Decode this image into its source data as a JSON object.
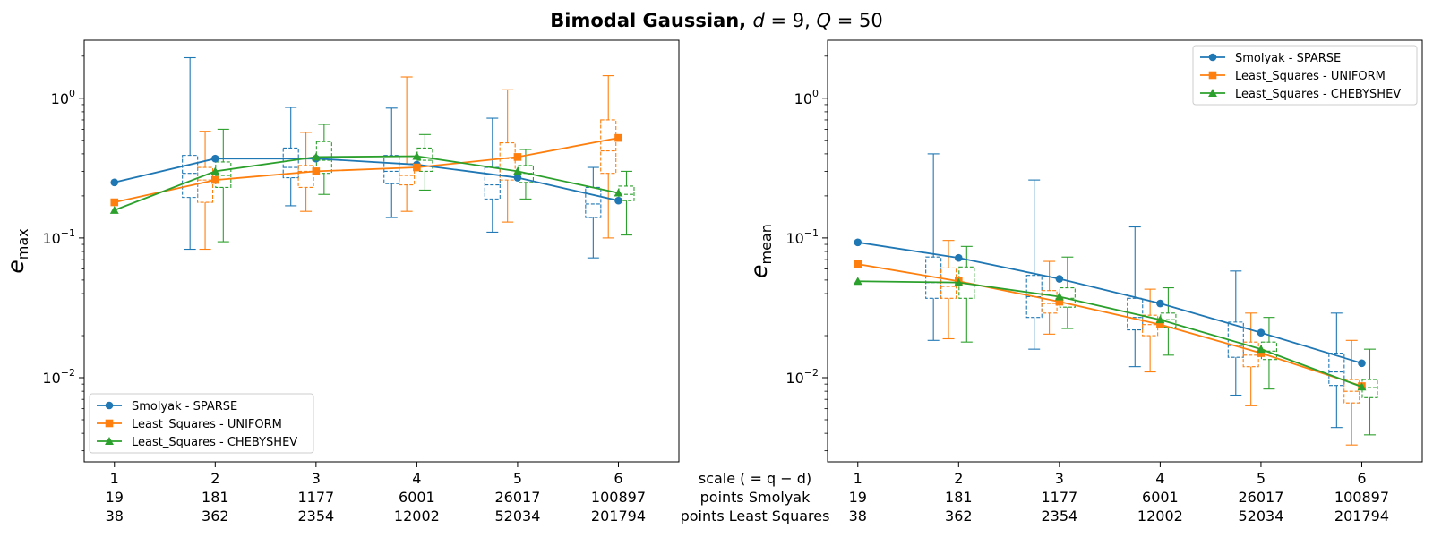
{
  "figure": {
    "title_bold": "Bimodal Gaussian, ",
    "title_math_d": "d",
    "title_math_d_val": " = 9, ",
    "title_math_q": "Q",
    "title_math_q_val": " = 50",
    "scale_label": "scale ( = q − d)",
    "points_smolyak_label": "points Smolyak",
    "points_ls_label": "points Least Squares"
  },
  "chart_data": [
    {
      "type": "line",
      "panel": "left",
      "ylabel_base": "e",
      "ylabel_sub": "max",
      "yscale": "log",
      "ylim": [
        0.0025,
        2.6
      ],
      "xlim": [
        0.7,
        6.6
      ],
      "legend_position": "lower-left",
      "x": [
        1,
        2,
        3,
        4,
        5,
        6
      ],
      "xtick_labels": [
        [
          "1",
          "19",
          "38"
        ],
        [
          "2",
          "181",
          "362"
        ],
        [
          "3",
          "1177",
          "2354"
        ],
        [
          "4",
          "6001",
          "12002"
        ],
        [
          "5",
          "26017",
          "52034"
        ],
        [
          "6",
          "100897",
          "201794"
        ]
      ],
      "ytick_labels": [
        {
          "base": "10",
          "exp": "0",
          "value": 1
        },
        {
          "base": "10",
          "exp": "−1",
          "value": 0.1
        },
        {
          "base": "10",
          "exp": "−2",
          "value": 0.01
        }
      ],
      "series": [
        {
          "name": "Smolyak - SPARSE",
          "color": "#1f77b4",
          "marker": "circle",
          "values": [
            0.25,
            0.37,
            0.37,
            0.335,
            0.27,
            0.185
          ],
          "boxes": [
            null,
            {
              "x": 1.75,
              "wlo": 0.083,
              "q1": 0.195,
              "med": 0.29,
              "q3": 0.39,
              "whi": 1.95
            },
            {
              "x": 2.75,
              "wlo": 0.17,
              "q1": 0.27,
              "med": 0.32,
              "q3": 0.44,
              "whi": 0.86
            },
            {
              "x": 3.75,
              "wlo": 0.14,
              "q1": 0.245,
              "med": 0.3,
              "q3": 0.39,
              "whi": 0.85
            },
            {
              "x": 4.75,
              "wlo": 0.11,
              "q1": 0.19,
              "med": 0.24,
              "q3": 0.32,
              "whi": 0.72
            },
            {
              "x": 5.75,
              "wlo": 0.072,
              "q1": 0.14,
              "med": 0.175,
              "q3": 0.23,
              "whi": 0.32
            }
          ]
        },
        {
          "name": "Least_Squares - UNIFORM",
          "color": "#ff7f0e",
          "marker": "square",
          "values": [
            0.18,
            0.26,
            0.3,
            0.32,
            0.38,
            0.52
          ],
          "boxes": [
            null,
            {
              "x": 1.9,
              "wlo": 0.083,
              "q1": 0.18,
              "med": 0.26,
              "q3": 0.32,
              "whi": 0.58
            },
            {
              "x": 2.9,
              "wlo": 0.155,
              "q1": 0.23,
              "med": 0.3,
              "q3": 0.33,
              "whi": 0.57
            },
            {
              "x": 3.9,
              "wlo": 0.155,
              "q1": 0.24,
              "med": 0.28,
              "q3": 0.34,
              "whi": 1.42
            },
            {
              "x": 4.9,
              "wlo": 0.13,
              "q1": 0.26,
              "med": 0.37,
              "q3": 0.48,
              "whi": 1.15
            },
            {
              "x": 5.9,
              "wlo": 0.1,
              "q1": 0.29,
              "med": 0.42,
              "q3": 0.7,
              "whi": 1.45
            }
          ]
        },
        {
          "name": "Least_Squares - CHEBYSHEV",
          "color": "#2ca02c",
          "marker": "triangle",
          "values": [
            0.158,
            0.3,
            0.38,
            0.385,
            0.3,
            0.21
          ],
          "boxes": [
            null,
            {
              "x": 2.08,
              "wlo": 0.094,
              "q1": 0.23,
              "med": 0.28,
              "q3": 0.35,
              "whi": 0.6
            },
            {
              "x": 3.08,
              "wlo": 0.205,
              "q1": 0.29,
              "med": 0.36,
              "q3": 0.49,
              "whi": 0.65
            },
            {
              "x": 4.08,
              "wlo": 0.22,
              "q1": 0.3,
              "med": 0.36,
              "q3": 0.44,
              "whi": 0.55
            },
            {
              "x": 5.08,
              "wlo": 0.19,
              "q1": 0.25,
              "med": 0.29,
              "q3": 0.33,
              "whi": 0.43
            },
            {
              "x": 6.08,
              "wlo": 0.105,
              "q1": 0.185,
              "med": 0.205,
              "q3": 0.235,
              "whi": 0.3
            }
          ]
        }
      ]
    },
    {
      "type": "line",
      "panel": "right",
      "ylabel_base": "e",
      "ylabel_sub": "mean",
      "yscale": "log",
      "ylim": [
        0.0025,
        2.6
      ],
      "xlim": [
        0.7,
        6.6
      ],
      "legend_position": "upper-right",
      "x": [
        1,
        2,
        3,
        4,
        5,
        6
      ],
      "xtick_labels": [
        [
          "1",
          "19",
          "38"
        ],
        [
          "2",
          "181",
          "362"
        ],
        [
          "3",
          "1177",
          "2354"
        ],
        [
          "4",
          "6001",
          "12002"
        ],
        [
          "5",
          "26017",
          "52034"
        ],
        [
          "6",
          "100897",
          "201794"
        ]
      ],
      "ytick_labels": [
        {
          "base": "10",
          "exp": "0",
          "value": 1
        },
        {
          "base": "10",
          "exp": "−1",
          "value": 0.1
        },
        {
          "base": "10",
          "exp": "−2",
          "value": 0.01
        }
      ],
      "series": [
        {
          "name": "Smolyak - SPARSE",
          "color": "#1f77b4",
          "marker": "circle",
          "values": [
            0.093,
            0.072,
            0.051,
            0.034,
            0.021,
            0.0127
          ],
          "boxes": [
            null,
            {
              "x": 1.75,
              "wlo": 0.0185,
              "q1": 0.037,
              "med": 0.048,
              "q3": 0.073,
              "whi": 0.4
            },
            {
              "x": 2.75,
              "wlo": 0.016,
              "q1": 0.027,
              "med": 0.038,
              "q3": 0.054,
              "whi": 0.26
            },
            {
              "x": 3.75,
              "wlo": 0.012,
              "q1": 0.022,
              "med": 0.027,
              "q3": 0.037,
              "whi": 0.12
            },
            {
              "x": 4.75,
              "wlo": 0.0075,
              "q1": 0.014,
              "med": 0.017,
              "q3": 0.025,
              "whi": 0.058
            },
            {
              "x": 5.75,
              "wlo": 0.0044,
              "q1": 0.0088,
              "med": 0.011,
              "q3": 0.015,
              "whi": 0.029
            }
          ]
        },
        {
          "name": "Least_Squares - UNIFORM",
          "color": "#ff7f0e",
          "marker": "square",
          "values": [
            0.065,
            0.049,
            0.035,
            0.024,
            0.015,
            0.0087
          ],
          "boxes": [
            null,
            {
              "x": 1.9,
              "wlo": 0.019,
              "q1": 0.037,
              "med": 0.045,
              "q3": 0.061,
              "whi": 0.096
            },
            {
              "x": 2.9,
              "wlo": 0.0205,
              "q1": 0.029,
              "med": 0.034,
              "q3": 0.042,
              "whi": 0.068
            },
            {
              "x": 3.9,
              "wlo": 0.011,
              "q1": 0.02,
              "med": 0.024,
              "q3": 0.028,
              "whi": 0.043
            },
            {
              "x": 4.9,
              "wlo": 0.0063,
              "q1": 0.012,
              "med": 0.0145,
              "q3": 0.018,
              "whi": 0.029
            },
            {
              "x": 5.9,
              "wlo": 0.0033,
              "q1": 0.0066,
              "med": 0.008,
              "q3": 0.0097,
              "whi": 0.0185
            }
          ]
        },
        {
          "name": "Least_Squares - CHEBYSHEV",
          "color": "#2ca02c",
          "marker": "triangle",
          "values": [
            0.049,
            0.048,
            0.038,
            0.026,
            0.016,
            0.0086
          ],
          "boxes": [
            null,
            {
              "x": 2.08,
              "wlo": 0.018,
              "q1": 0.037,
              "med": 0.047,
              "q3": 0.062,
              "whi": 0.087
            },
            {
              "x": 3.08,
              "wlo": 0.0225,
              "q1": 0.032,
              "med": 0.037,
              "q3": 0.044,
              "whi": 0.073
            },
            {
              "x": 4.08,
              "wlo": 0.0145,
              "q1": 0.023,
              "med": 0.026,
              "q3": 0.029,
              "whi": 0.044
            },
            {
              "x": 5.08,
              "wlo": 0.0083,
              "q1": 0.0135,
              "med": 0.0155,
              "q3": 0.018,
              "whi": 0.027
            },
            {
              "x": 6.08,
              "wlo": 0.0039,
              "q1": 0.0072,
              "med": 0.0085,
              "q3": 0.0097,
              "whi": 0.016
            }
          ]
        }
      ]
    }
  ]
}
